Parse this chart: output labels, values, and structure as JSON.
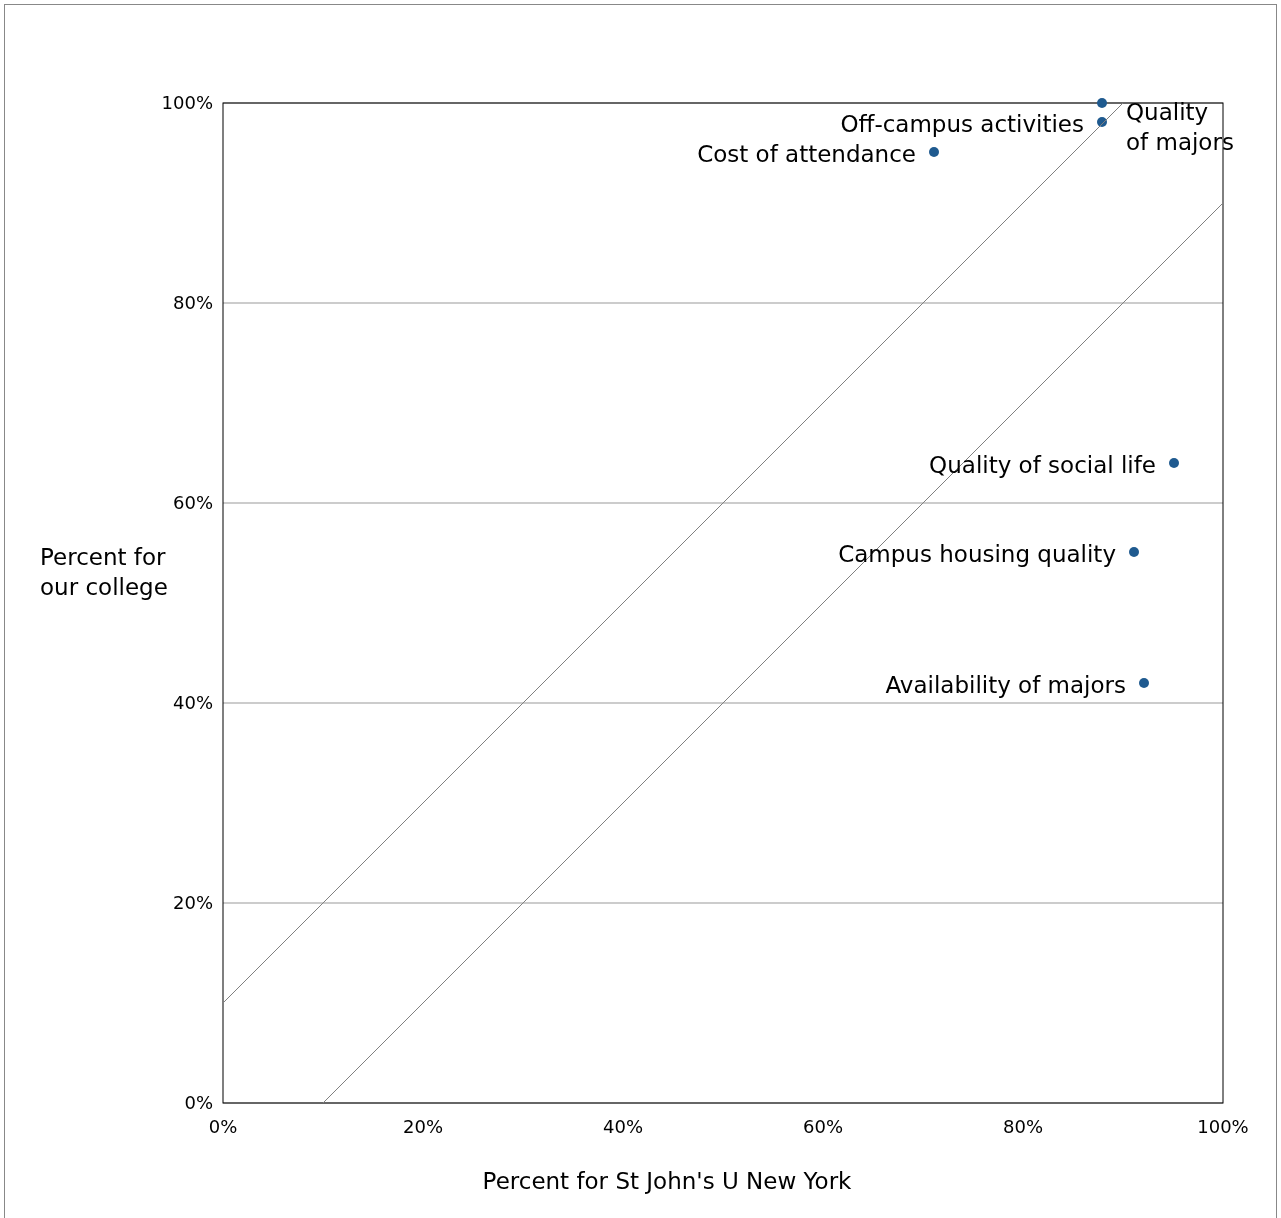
{
  "chart_data": {
    "type": "scatter",
    "xlabel": "Percent for St John's U New York",
    "ylabel": "Percent for\nour college",
    "xlim": [
      0,
      100
    ],
    "ylim": [
      0,
      100
    ],
    "xticks": [
      {
        "value": 0,
        "label": "0%"
      },
      {
        "value": 20,
        "label": "20%"
      },
      {
        "value": 40,
        "label": "40%"
      },
      {
        "value": 60,
        "label": "60%"
      },
      {
        "value": 80,
        "label": "80%"
      },
      {
        "value": 100,
        "label": "100%"
      }
    ],
    "yticks": [
      {
        "value": 0,
        "label": "0%"
      },
      {
        "value": 20,
        "label": "20%"
      },
      {
        "value": 40,
        "label": "40%"
      },
      {
        "value": 60,
        "label": "60%"
      },
      {
        "value": 80,
        "label": "80%"
      },
      {
        "value": 100,
        "label": "100%"
      }
    ],
    "grid": "y",
    "marker": "circle",
    "series": [
      {
        "color": "#1f5a8f",
        "x": [
          87.9,
          87.9,
          71.1,
          95.1,
          91.1,
          92.1
        ],
        "values": [
          100,
          98.1,
          95.1,
          64,
          55.1,
          42
        ]
      },
      {
        "type": "line",
        "color": "#808080",
        "marker": "none",
        "x": [
          0,
          90
        ],
        "values": [
          10,
          100
        ]
      },
      {
        "type": "line",
        "color": "#808080",
        "marker": "none",
        "x": [
          10,
          100
        ],
        "values": [
          0,
          90
        ]
      }
    ],
    "annotations": [
      {
        "text": "Quality\nof majors",
        "x": 87.9,
        "y": 100
      },
      {
        "text": "Off-campus activities",
        "x": 87.9,
        "y": 98.1
      },
      {
        "text": "Cost of attendance",
        "x": 71.1,
        "y": 95.1
      },
      {
        "text": "Quality of social life",
        "x": 95.1,
        "y": 64
      },
      {
        "text": "Campus housing quality",
        "x": 91.1,
        "y": 55.1
      },
      {
        "text": "Availability of majors",
        "x": 92.1,
        "y": 42
      }
    ]
  }
}
